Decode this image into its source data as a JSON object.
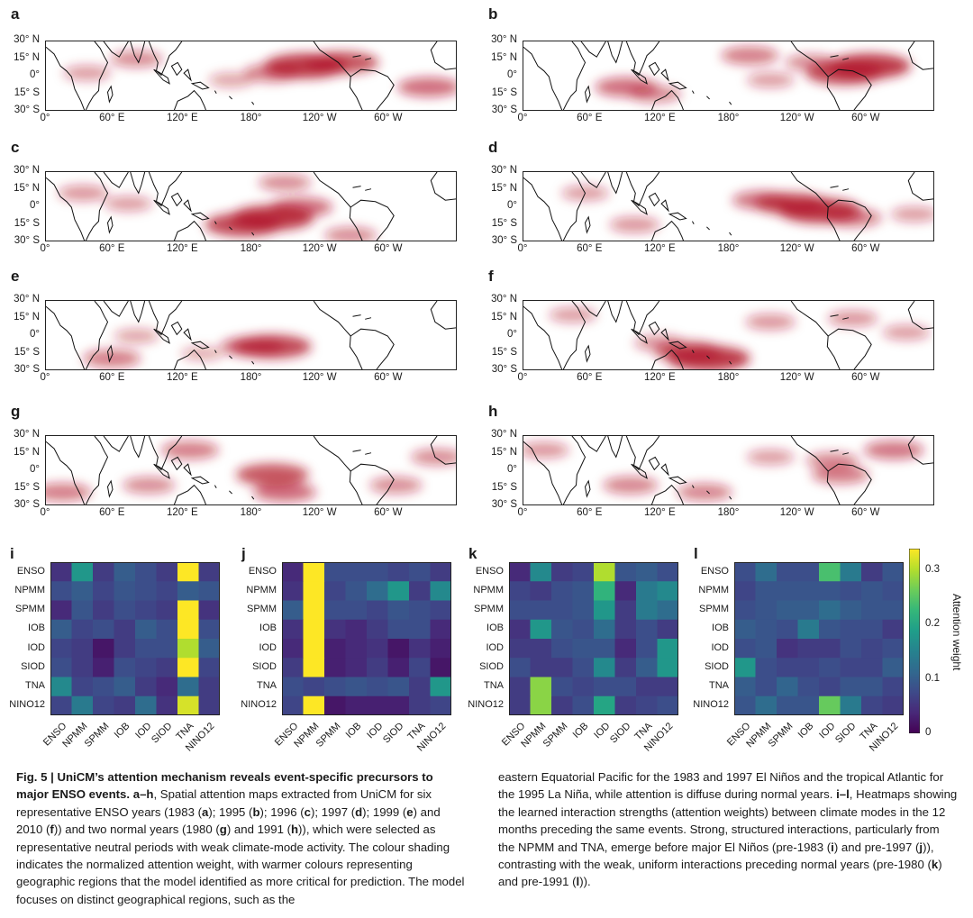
{
  "maps": {
    "lat_ticks": [
      "30° N",
      "15° N",
      "0°",
      "15° S",
      "30° S"
    ],
    "lon_ticks": [
      "0°",
      "60° E",
      "120° E",
      "180°",
      "120° W",
      "60° W"
    ],
    "panels": [
      {
        "letter": "a",
        "year": "1983",
        "hotspots": [
          [
            0.63,
            0.35,
            1.0
          ],
          [
            0.72,
            0.3,
            0.8
          ],
          [
            0.55,
            0.45,
            0.5
          ],
          [
            0.22,
            0.25,
            0.4
          ],
          [
            0.1,
            0.45,
            0.3
          ],
          [
            0.93,
            0.65,
            0.6
          ],
          [
            0.45,
            0.55,
            0.25
          ]
        ]
      },
      {
        "letter": "b",
        "year": "1995",
        "hotspots": [
          [
            0.78,
            0.45,
            0.9
          ],
          [
            0.84,
            0.35,
            1.0
          ],
          [
            0.25,
            0.65,
            0.6
          ],
          [
            0.32,
            0.75,
            0.4
          ],
          [
            0.55,
            0.2,
            0.5
          ],
          [
            0.7,
            0.3,
            0.4
          ],
          [
            0.6,
            0.55,
            0.3
          ]
        ]
      },
      {
        "letter": "c",
        "year": "1996",
        "hotspots": [
          [
            0.55,
            0.65,
            1.0
          ],
          [
            0.48,
            0.75,
            0.9
          ],
          [
            0.62,
            0.5,
            0.6
          ],
          [
            0.2,
            0.45,
            0.3
          ],
          [
            0.09,
            0.3,
            0.35
          ],
          [
            0.74,
            0.9,
            0.4
          ],
          [
            0.58,
            0.15,
            0.4
          ]
        ]
      },
      {
        "letter": "d",
        "year": "1997",
        "hotspots": [
          [
            0.72,
            0.55,
            1.0
          ],
          [
            0.65,
            0.45,
            0.8
          ],
          [
            0.58,
            0.4,
            0.55
          ],
          [
            0.8,
            0.65,
            0.5
          ],
          [
            0.27,
            0.75,
            0.35
          ],
          [
            0.95,
            0.6,
            0.3
          ],
          [
            0.15,
            0.3,
            0.3
          ]
        ]
      },
      {
        "letter": "e",
        "year": "1999",
        "hotspots": [
          [
            0.55,
            0.65,
            0.9
          ],
          [
            0.5,
            0.65,
            0.6
          ],
          [
            0.16,
            0.82,
            0.5
          ],
          [
            0.22,
            0.5,
            0.25
          ],
          [
            0.38,
            0.75,
            0.2
          ]
        ]
      },
      {
        "letter": "f",
        "year": "2010",
        "hotspots": [
          [
            0.45,
            0.82,
            1.0
          ],
          [
            0.4,
            0.72,
            0.7
          ],
          [
            0.33,
            0.6,
            0.35
          ],
          [
            0.6,
            0.3,
            0.35
          ],
          [
            0.8,
            0.25,
            0.35
          ],
          [
            0.93,
            0.45,
            0.3
          ],
          [
            0.12,
            0.2,
            0.3
          ]
        ]
      },
      {
        "letter": "g",
        "year": "1980",
        "hotspots": [
          [
            0.55,
            0.55,
            0.8
          ],
          [
            0.58,
            0.8,
            0.6
          ],
          [
            0.35,
            0.2,
            0.5
          ],
          [
            0.25,
            0.7,
            0.4
          ],
          [
            0.85,
            0.7,
            0.4
          ],
          [
            0.95,
            0.3,
            0.4
          ],
          [
            0.04,
            0.8,
            0.5
          ]
        ]
      },
      {
        "letter": "h",
        "year": "1991",
        "hotspots": [
          [
            0.9,
            0.2,
            0.55
          ],
          [
            0.77,
            0.55,
            0.5
          ],
          [
            0.26,
            0.7,
            0.45
          ],
          [
            0.44,
            0.8,
            0.45
          ],
          [
            0.75,
            0.35,
            0.4
          ],
          [
            0.05,
            0.2,
            0.35
          ],
          [
            0.6,
            0.3,
            0.3
          ]
        ]
      }
    ]
  },
  "heatmaps": {
    "modes": [
      "ENSO",
      "NPMM",
      "SPMM",
      "IOB",
      "IOD",
      "SIOD",
      "TNA",
      "NINO12"
    ],
    "panels": [
      {
        "letter": "i",
        "matrix": [
          [
            0.05,
            0.18,
            0.06,
            0.1,
            0.08,
            0.06,
            0.34,
            0.06
          ],
          [
            0.08,
            0.1,
            0.07,
            0.09,
            0.08,
            0.07,
            0.1,
            0.09
          ],
          [
            0.04,
            0.09,
            0.06,
            0.08,
            0.07,
            0.06,
            0.34,
            0.05
          ],
          [
            0.1,
            0.07,
            0.08,
            0.06,
            0.1,
            0.08,
            0.34,
            0.08
          ],
          [
            0.07,
            0.06,
            0.02,
            0.06,
            0.08,
            0.08,
            0.3,
            0.1
          ],
          [
            0.08,
            0.06,
            0.03,
            0.08,
            0.07,
            0.06,
            0.34,
            0.07
          ],
          [
            0.16,
            0.07,
            0.08,
            0.1,
            0.06,
            0.04,
            0.12,
            0.06
          ],
          [
            0.07,
            0.14,
            0.07,
            0.06,
            0.12,
            0.05,
            0.32,
            0.06
          ]
        ]
      },
      {
        "letter": "j",
        "matrix": [
          [
            0.04,
            0.34,
            0.08,
            0.08,
            0.08,
            0.07,
            0.08,
            0.06
          ],
          [
            0.05,
            0.34,
            0.07,
            0.09,
            0.12,
            0.18,
            0.06,
            0.16
          ],
          [
            0.1,
            0.34,
            0.08,
            0.08,
            0.07,
            0.09,
            0.08,
            0.07
          ],
          [
            0.05,
            0.34,
            0.05,
            0.04,
            0.06,
            0.08,
            0.08,
            0.04
          ],
          [
            0.04,
            0.34,
            0.03,
            0.04,
            0.05,
            0.02,
            0.05,
            0.03
          ],
          [
            0.06,
            0.34,
            0.03,
            0.04,
            0.06,
            0.03,
            0.07,
            0.02
          ],
          [
            0.08,
            0.07,
            0.08,
            0.09,
            0.08,
            0.09,
            0.06,
            0.18
          ],
          [
            0.07,
            0.34,
            0.02,
            0.03,
            0.03,
            0.03,
            0.06,
            0.07
          ]
        ]
      },
      {
        "letter": "k",
        "matrix": [
          [
            0.04,
            0.16,
            0.06,
            0.07,
            0.3,
            0.09,
            0.1,
            0.08
          ],
          [
            0.07,
            0.06,
            0.08,
            0.09,
            0.22,
            0.04,
            0.14,
            0.16
          ],
          [
            0.08,
            0.08,
            0.08,
            0.09,
            0.18,
            0.06,
            0.14,
            0.12
          ],
          [
            0.05,
            0.18,
            0.09,
            0.08,
            0.12,
            0.06,
            0.08,
            0.06
          ],
          [
            0.06,
            0.06,
            0.08,
            0.09,
            0.09,
            0.04,
            0.08,
            0.18
          ],
          [
            0.08,
            0.06,
            0.06,
            0.08,
            0.16,
            0.06,
            0.1,
            0.18
          ],
          [
            0.06,
            0.28,
            0.08,
            0.07,
            0.08,
            0.08,
            0.06,
            0.06
          ],
          [
            0.06,
            0.28,
            0.06,
            0.08,
            0.2,
            0.06,
            0.07,
            0.08
          ]
        ]
      },
      {
        "letter": "l",
        "matrix": [
          [
            0.08,
            0.12,
            0.08,
            0.08,
            0.24,
            0.14,
            0.06,
            0.09
          ],
          [
            0.07,
            0.09,
            0.09,
            0.09,
            0.09,
            0.08,
            0.09,
            0.08
          ],
          [
            0.08,
            0.09,
            0.1,
            0.1,
            0.12,
            0.1,
            0.09,
            0.09
          ],
          [
            0.1,
            0.09,
            0.08,
            0.14,
            0.09,
            0.08,
            0.08,
            0.06
          ],
          [
            0.08,
            0.09,
            0.05,
            0.06,
            0.06,
            0.08,
            0.07,
            0.08
          ],
          [
            0.18,
            0.08,
            0.07,
            0.07,
            0.08,
            0.07,
            0.07,
            0.1
          ],
          [
            0.1,
            0.08,
            0.11,
            0.08,
            0.07,
            0.09,
            0.09,
            0.07
          ],
          [
            0.09,
            0.12,
            0.09,
            0.09,
            0.26,
            0.14,
            0.07,
            0.06
          ]
        ]
      }
    ],
    "colorbar": {
      "label": "Attention weight",
      "ticks": [
        "0",
        "0.1",
        "0.2",
        "0.3"
      ],
      "range": [
        0,
        0.34
      ]
    }
  },
  "caption": {
    "title": "Fig. 5 | UniCM’s attention mechanism reveals event-specific precursors to major ENSO events.",
    "left": [
      {
        "b": "a–h",
        "t": ", Spatial attention maps extracted from UniCM for six representative ENSO years (1983 ("
      },
      {
        "b": "a",
        "t": "); 1995 ("
      },
      {
        "b": "b",
        "t": "); 1996 ("
      },
      {
        "b": "c",
        "t": "); 1997 ("
      },
      {
        "b": "d",
        "t": "); 1999 ("
      },
      {
        "b": "e",
        "t": ") and 2010 ("
      },
      {
        "b": "f",
        "t": ")) and two normal years (1980 ("
      },
      {
        "b": "g",
        "t": ") and 1991 ("
      },
      {
        "b": "h",
        "t": ")), which were selected as representative neutral periods with weak climate-mode activity. The colour shading indicates the normalized attention weight, with warmer colours representing geographic regions that the model identified as more critical for prediction. The model focuses on distinct geographical regions, such as the"
      }
    ],
    "right": [
      {
        "b": "",
        "t": "eastern Equatorial Pacific for the 1983 and 1997 El Niños and the tropical Atlantic for the 1995 La Niña, while attention is diffuse during normal years. "
      },
      {
        "b": "i–l",
        "t": ", Heatmaps showing the learned interaction strengths (attention weights) between climate modes in the 12 months preceding the same events. Strong, structured interactions, particularly from the NPMM and TNA, emerge before major El Niños (pre-1983 ("
      },
      {
        "b": "i",
        "t": ") and pre-1997 ("
      },
      {
        "b": "j",
        "t": ")), contrasting with the weak, uniform interactions preceding normal years (pre-1980 ("
      },
      {
        "b": "k",
        "t": ") and pre-1991 ("
      },
      {
        "b": "l",
        "t": "))."
      }
    ]
  },
  "colors": {
    "map_high": "#b2182b",
    "map_low": "#ffffff",
    "coast": "#111111"
  }
}
